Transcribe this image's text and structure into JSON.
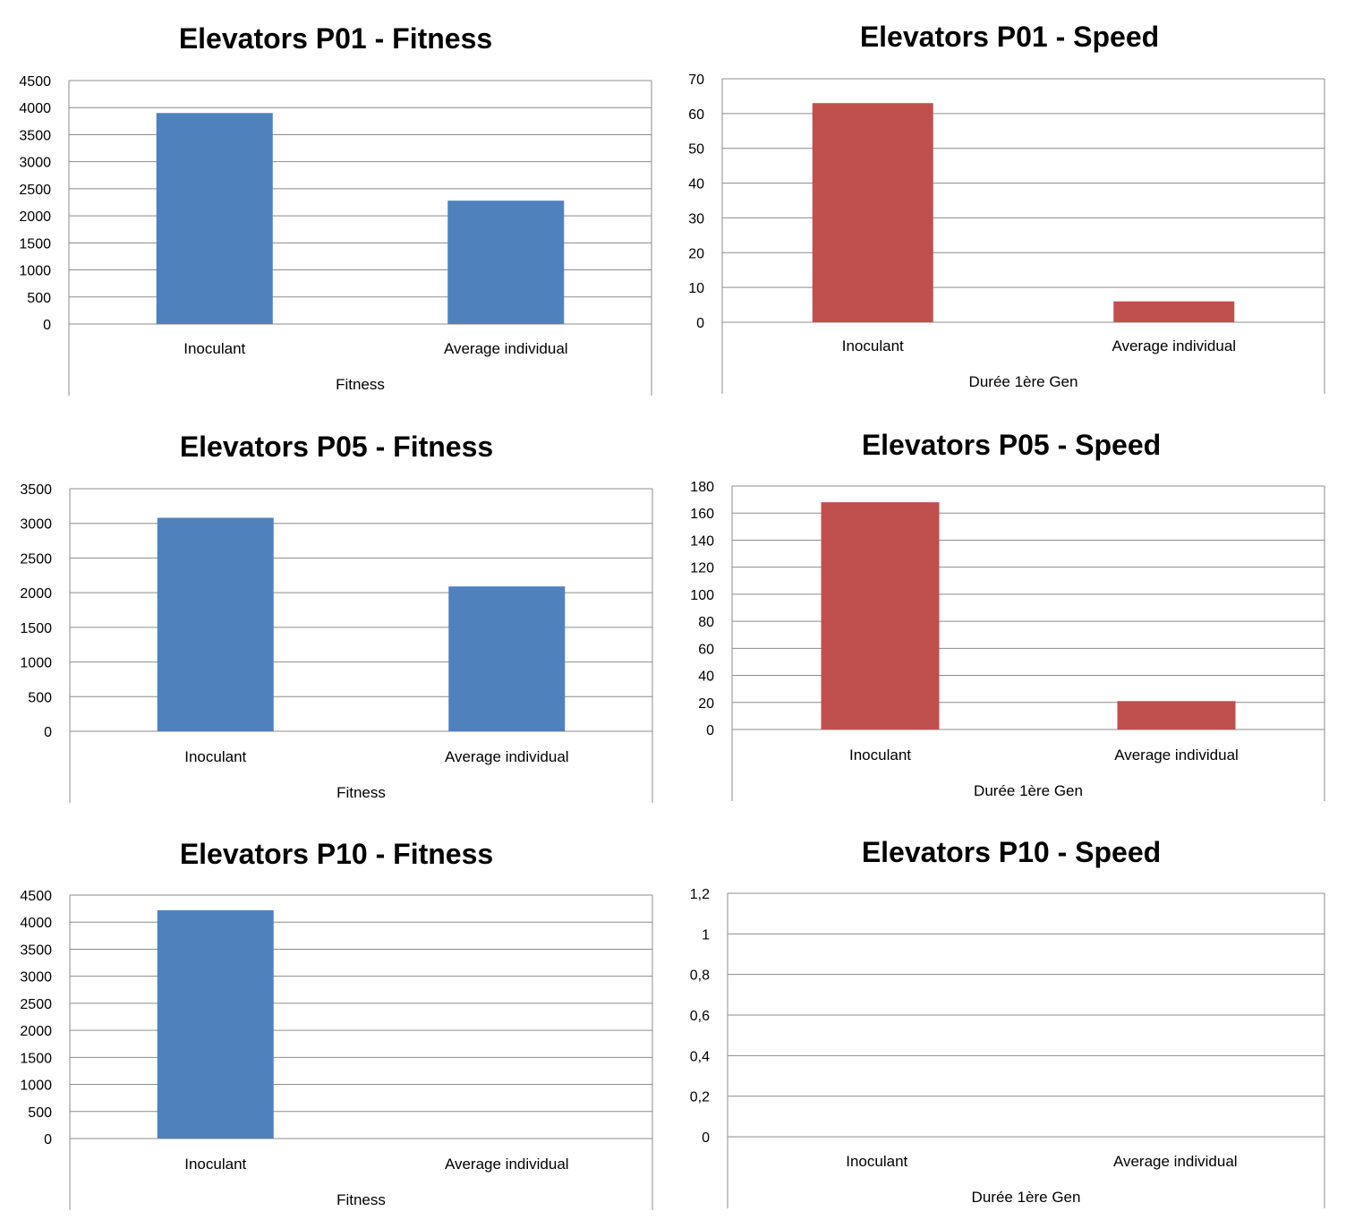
{
  "chart_data": [
    {
      "type": "bar",
      "title": "Elevators P01 - Fitness",
      "categories": [
        "Inoculant",
        "Average individual"
      ],
      "values": [
        3900,
        2280
      ],
      "ylim": [
        0,
        4500
      ],
      "yticks": [
        "0",
        "500",
        "1000",
        "1500",
        "2000",
        "2500",
        "3000",
        "3500",
        "4000",
        "4500"
      ],
      "xlabel": "Fitness",
      "ylabel": "",
      "color": "#4f81bd",
      "grid": true
    },
    {
      "type": "bar",
      "title": "Elevators P01 - Speed",
      "categories": [
        "Inoculant",
        "Average individual"
      ],
      "values": [
        63,
        6
      ],
      "ylim": [
        0,
        70
      ],
      "yticks": [
        "0",
        "10",
        "20",
        "30",
        "40",
        "50",
        "60",
        "70"
      ],
      "xlabel": "Durée 1ère Gen",
      "ylabel": "",
      "color": "#c0504d",
      "grid": true
    },
    {
      "type": "bar",
      "title": "Elevators P05 - Fitness",
      "categories": [
        "Inoculant",
        "Average individual"
      ],
      "values": [
        3080,
        2090
      ],
      "ylim": [
        0,
        3500
      ],
      "yticks": [
        "0",
        "500",
        "1000",
        "1500",
        "2000",
        "2500",
        "3000",
        "3500"
      ],
      "xlabel": "Fitness",
      "ylabel": "",
      "color": "#4f81bd",
      "grid": true
    },
    {
      "type": "bar",
      "title": "Elevators P05 - Speed",
      "categories": [
        "Inoculant",
        "Average individual"
      ],
      "values": [
        168,
        21
      ],
      "ylim": [
        0,
        180
      ],
      "yticks": [
        "0",
        "20",
        "40",
        "60",
        "80",
        "100",
        "120",
        "140",
        "160",
        "180"
      ],
      "xlabel": "Durée 1ère Gen",
      "ylabel": "",
      "color": "#c0504d",
      "grid": true
    },
    {
      "type": "bar",
      "title": "Elevators P10 - Fitness",
      "categories": [
        "Inoculant",
        "Average individual"
      ],
      "values": [
        4220,
        0
      ],
      "ylim": [
        0,
        4500
      ],
      "yticks": [
        "0",
        "500",
        "1000",
        "1500",
        "2000",
        "2500",
        "3000",
        "3500",
        "4000",
        "4500"
      ],
      "xlabel": "Fitness",
      "ylabel": "",
      "color": "#4f81bd",
      "grid": true
    },
    {
      "type": "bar",
      "title": "Elevators P10 - Speed",
      "categories": [
        "Inoculant",
        "Average individual"
      ],
      "values": [
        0,
        0
      ],
      "ylim": [
        0,
        1.2
      ],
      "yticks": [
        "0",
        "0,2",
        "0,4",
        "0,6",
        "0,8",
        "1",
        "1,2"
      ],
      "xlabel": "Durée 1ère Gen",
      "ylabel": "",
      "color": "#c0504d",
      "grid": true
    }
  ]
}
